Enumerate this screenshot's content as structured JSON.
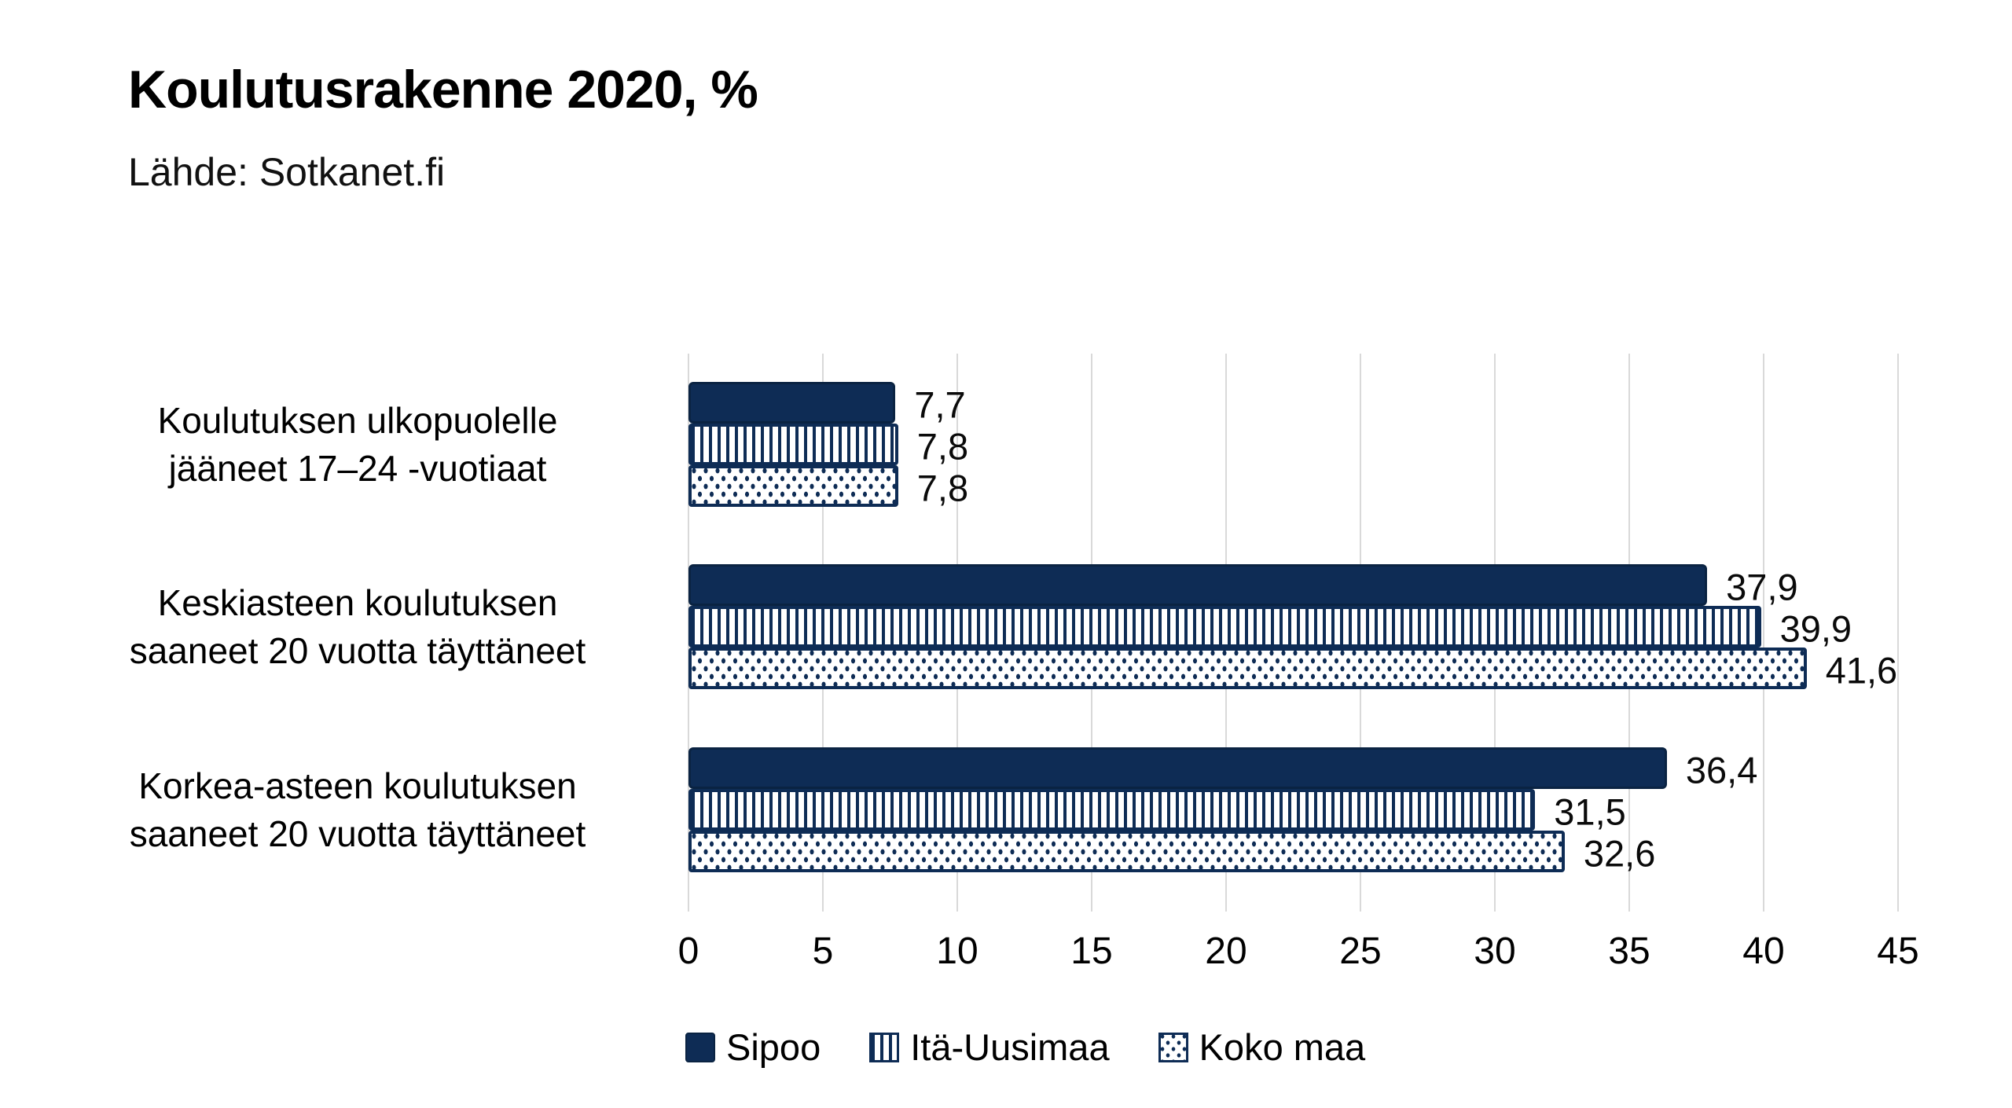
{
  "chart_data": {
    "type": "bar",
    "orientation": "horizontal",
    "title": "Koulutusrakenne 2020, %",
    "source": "Lähde: Sotkanet.fi",
    "categories": [
      {
        "lines": [
          "Koulutuksen ulkopuolelle",
          "jääneet 17–24 -vuotiaat"
        ]
      },
      {
        "lines": [
          "Keskiasteen koulutuksen",
          "saaneet 20 vuotta täyttäneet"
        ]
      },
      {
        "lines": [
          "Korkea-asteen koulutuksen",
          "saaneet 20 vuotta täyttäneet"
        ]
      }
    ],
    "series": [
      {
        "name": "Sipoo",
        "pattern": "solid",
        "values": [
          7.7,
          37.9,
          36.4
        ],
        "labels": [
          "7,7",
          "37,9",
          "36,4"
        ]
      },
      {
        "name": "Itä-Uusimaa",
        "pattern": "stripes",
        "values": [
          7.8,
          39.9,
          31.5
        ],
        "labels": [
          "7,8",
          "39,9",
          "31,5"
        ]
      },
      {
        "name": "Koko maa",
        "pattern": "dots",
        "values": [
          7.8,
          41.6,
          32.6
        ],
        "labels": [
          "7,8",
          "41,6",
          "32,6"
        ]
      }
    ],
    "x_ticks": [
      0,
      5,
      10,
      15,
      20,
      25,
      30,
      35,
      40,
      45
    ],
    "xlim": [
      0,
      45
    ],
    "grid": true,
    "legend_position": "bottom",
    "colors": {
      "navy": "#0E2C55",
      "bar_border": "#0A2342",
      "gridline": "#D9D9D9",
      "text": "#000000",
      "background": "#FFFFFF"
    }
  }
}
